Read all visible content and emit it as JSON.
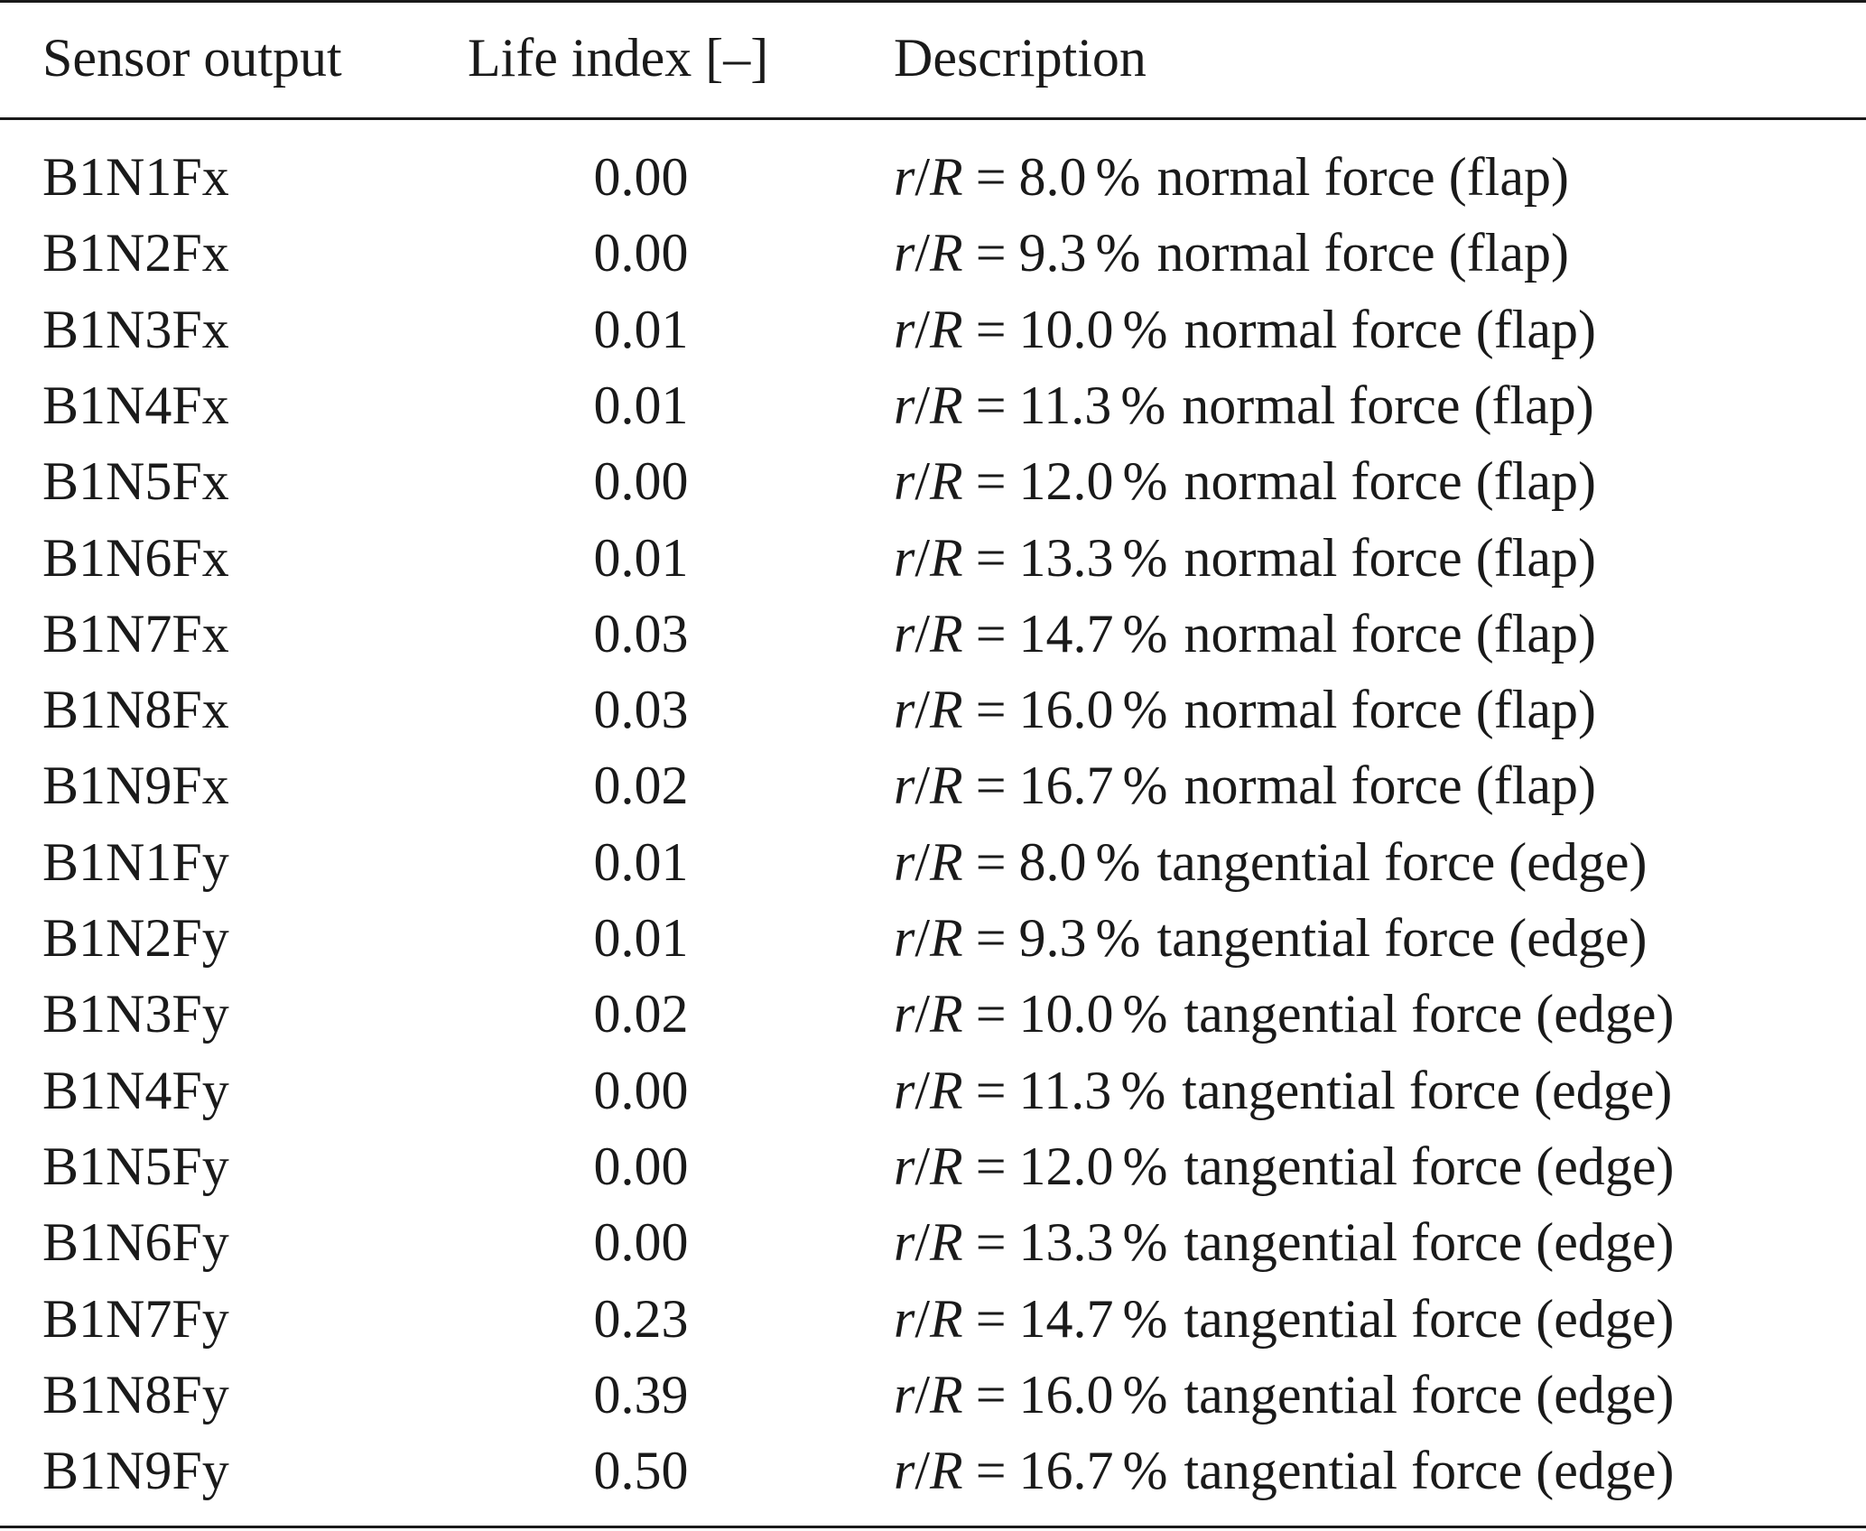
{
  "table": {
    "headers": {
      "sensor": "Sensor output",
      "life": "Life index [–]",
      "description": "Description"
    },
    "math": {
      "r": "r",
      "slash": "/",
      "R": "R",
      "eq": "=",
      "pct": "%"
    },
    "rows": [
      {
        "sensor": "B1N1Fx",
        "life": "0.00",
        "rR": "8.0",
        "desc": "normal force (flap)"
      },
      {
        "sensor": "B1N2Fx",
        "life": "0.00",
        "rR": "9.3",
        "desc": "normal force (flap)"
      },
      {
        "sensor": "B1N3Fx",
        "life": "0.01",
        "rR": "10.0",
        "desc": "normal force (flap)"
      },
      {
        "sensor": "B1N4Fx",
        "life": "0.01",
        "rR": "11.3",
        "desc": "normal force (flap)"
      },
      {
        "sensor": "B1N5Fx",
        "life": "0.00",
        "rR": "12.0",
        "desc": "normal force (flap)"
      },
      {
        "sensor": "B1N6Fx",
        "life": "0.01",
        "rR": "13.3",
        "desc": "normal force (flap)"
      },
      {
        "sensor": "B1N7Fx",
        "life": "0.03",
        "rR": "14.7",
        "desc": "normal force (flap)"
      },
      {
        "sensor": "B1N8Fx",
        "life": "0.03",
        "rR": "16.0",
        "desc": "normal force (flap)"
      },
      {
        "sensor": "B1N9Fx",
        "life": "0.02",
        "rR": "16.7",
        "desc": "normal force (flap)"
      },
      {
        "sensor": "B1N1Fy",
        "life": "0.01",
        "rR": "8.0",
        "desc": "tangential force (edge)"
      },
      {
        "sensor": "B1N2Fy",
        "life": "0.01",
        "rR": "9.3",
        "desc": "tangential force (edge)"
      },
      {
        "sensor": "B1N3Fy",
        "life": "0.02",
        "rR": "10.0",
        "desc": "tangential force (edge)"
      },
      {
        "sensor": "B1N4Fy",
        "life": "0.00",
        "rR": "11.3",
        "desc": "tangential force (edge)"
      },
      {
        "sensor": "B1N5Fy",
        "life": "0.00",
        "rR": "12.0",
        "desc": "tangential force (edge)"
      },
      {
        "sensor": "B1N6Fy",
        "life": "0.00",
        "rR": "13.3",
        "desc": "tangential force (edge)"
      },
      {
        "sensor": "B1N7Fy",
        "life": "0.23",
        "rR": "14.7",
        "desc": "tangential force (edge)"
      },
      {
        "sensor": "B1N8Fy",
        "life": "0.39",
        "rR": "16.0",
        "desc": "tangential force (edge)"
      },
      {
        "sensor": "B1N9Fy",
        "life": "0.50",
        "rR": "16.7",
        "desc": "tangential force (edge)"
      }
    ]
  }
}
